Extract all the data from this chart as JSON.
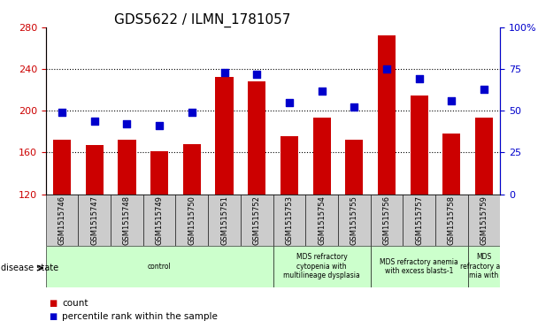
{
  "title": "GDS5622 / ILMN_1781057",
  "samples": [
    "GSM1515746",
    "GSM1515747",
    "GSM1515748",
    "GSM1515749",
    "GSM1515750",
    "GSM1515751",
    "GSM1515752",
    "GSM1515753",
    "GSM1515754",
    "GSM1515755",
    "GSM1515756",
    "GSM1515757",
    "GSM1515758",
    "GSM1515759"
  ],
  "counts": [
    172,
    167,
    172,
    161,
    168,
    232,
    228,
    176,
    193,
    172,
    272,
    215,
    178,
    193
  ],
  "percentile_ranks": [
    49,
    44,
    42,
    41,
    49,
    73,
    72,
    55,
    62,
    52,
    75,
    69,
    56,
    63
  ],
  "ylim_left": [
    120,
    280
  ],
  "ylim_right": [
    0,
    100
  ],
  "yticks_left": [
    120,
    160,
    200,
    240,
    280
  ],
  "yticks_right": [
    0,
    25,
    50,
    75,
    100
  ],
  "bar_color": "#cc0000",
  "dot_color": "#0000cc",
  "dot_size": 35,
  "grid_lines": [
    160,
    200,
    240
  ],
  "disease_groups": [
    {
      "label": "control",
      "start": 0,
      "end": 7,
      "color": "#ccffcc"
    },
    {
      "label": "MDS refractory\ncytopenia with\nmultilineage dysplasia",
      "start": 7,
      "end": 10,
      "color": "#ccffcc"
    },
    {
      "label": "MDS refractory anemia\nwith excess blasts-1",
      "start": 10,
      "end": 13,
      "color": "#ccffcc"
    },
    {
      "label": "MDS\nrefractory ane\nmia with",
      "start": 13,
      "end": 14,
      "color": "#ccffcc"
    }
  ],
  "disease_state_label": "disease state",
  "legend_count_label": "count",
  "legend_pct_label": "percentile rank within the sample",
  "tick_label_bg": "#cccccc",
  "title_fontsize": 11,
  "axis_fontsize": 8,
  "bar_width": 0.55,
  "sample_fontsize": 6,
  "disease_fontsize": 5.5,
  "legend_fontsize": 7.5
}
